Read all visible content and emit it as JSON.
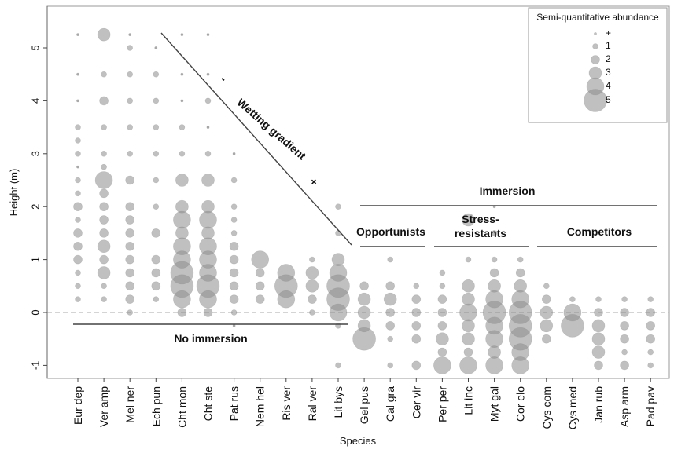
{
  "chart_data": {
    "type": "scatter",
    "subtype": "bubble",
    "xlabel": "Species",
    "ylabel": "Height (m)",
    "ylim": [
      -1.45,
      5.6
    ],
    "yticks": [
      "-1",
      "0",
      "1",
      "2",
      "3",
      "4",
      "5"
    ],
    "categories": [
      "Eur dep",
      "Ver amp",
      "Mel ner",
      "Ech pun",
      "Cht mon",
      "Cht ste",
      "Pat rus",
      "Nem hel",
      "Ris ver",
      "Ral ver",
      "Lit bys",
      "Gel pus",
      "Cal gra",
      "Cer vir",
      "Per per",
      "Lit inc",
      "Myt gal",
      "Cor elo",
      "Cys com",
      "Cys med",
      "Jan rub",
      "Asp arm",
      "Pad pav"
    ],
    "legend": {
      "title": "Semi-quantitative abundance",
      "position": "top-right",
      "levels": [
        "+",
        "1",
        "2",
        "3",
        "4",
        "5"
      ]
    },
    "annotations": {
      "wetting_gradient": "Wetting gradient",
      "minus": "-",
      "plus": "+",
      "no_immersion": "No immersion",
      "immersion": "Immersion",
      "opportunists": "Opportunists",
      "stress_resistants_1": "Stress-",
      "stress_resistants_2": "resistants",
      "competitors": "Competitors"
    },
    "colors": {
      "points": "#8c8c8c",
      "lines": "#444444",
      "zero_line": "#bbbbbb"
    },
    "points": [
      {
        "species": "Eur dep",
        "heights": [
          5.25,
          4.5,
          4.0,
          3.5,
          3.25,
          3.0,
          2.75,
          2.5,
          2.25,
          2.0,
          1.75,
          1.5,
          1.25,
          1.0,
          0.75,
          0.5,
          0.25
        ],
        "abundance": [
          0,
          0,
          0,
          1,
          1,
          1,
          0,
          1,
          1,
          2,
          1,
          2,
          2,
          2,
          1,
          1,
          1
        ]
      },
      {
        "species": "Ver amp",
        "heights": [
          5.25,
          4.5,
          4.0,
          3.5,
          3.0,
          2.75,
          2.5,
          2.25,
          2.0,
          1.75,
          1.5,
          1.25,
          1.0,
          0.75,
          0.5,
          0.25
        ],
        "abundance": [
          3,
          1,
          2,
          1,
          1,
          1,
          4,
          2,
          2,
          2,
          2,
          3,
          2,
          3,
          1,
          1
        ]
      },
      {
        "species": "Mel ner",
        "heights": [
          5.25,
          5.0,
          4.5,
          4.0,
          3.5,
          3.0,
          2.5,
          2.0,
          1.75,
          1.5,
          1.25,
          1.0,
          0.75,
          0.5,
          0.25,
          0.0
        ],
        "abundance": [
          0,
          1,
          1,
          1,
          1,
          1,
          2,
          2,
          2,
          2,
          2,
          2,
          2,
          2,
          2,
          1
        ]
      },
      {
        "species": "Ech pun",
        "heights": [
          5.0,
          4.5,
          4.0,
          3.5,
          3.0,
          2.5,
          2.0,
          1.5,
          1.0,
          0.75,
          0.5,
          0.25
        ],
        "abundance": [
          0,
          1,
          1,
          1,
          1,
          1,
          1,
          2,
          2,
          2,
          2,
          1
        ]
      },
      {
        "species": "Cht mon",
        "heights": [
          5.25,
          4.5,
          4.0,
          3.5,
          3.0,
          2.5,
          2.0,
          1.75,
          1.5,
          1.25,
          1.0,
          0.75,
          0.5,
          0.25,
          0.0
        ],
        "abundance": [
          0,
          0,
          0,
          1,
          1,
          3,
          3,
          4,
          3,
          4,
          4,
          5,
          5,
          4,
          2
        ]
      },
      {
        "species": "Cht ste",
        "heights": [
          5.25,
          4.5,
          4.0,
          3.5,
          3.0,
          2.5,
          2.0,
          1.75,
          1.5,
          1.25,
          1.0,
          0.75,
          0.5,
          0.25,
          0.0
        ],
        "abundance": [
          0,
          0,
          1,
          0,
          1,
          3,
          3,
          4,
          3,
          4,
          4,
          4,
          5,
          4,
          2
        ]
      },
      {
        "species": "Pat rus",
        "heights": [
          3.0,
          2.5,
          2.0,
          1.75,
          1.5,
          1.25,
          1.0,
          0.75,
          0.5,
          0.25,
          0.0,
          -0.25
        ],
        "abundance": [
          0,
          1,
          1,
          1,
          1,
          2,
          2,
          2,
          2,
          2,
          1,
          0
        ]
      },
      {
        "species": "Nem hel",
        "heights": [
          1.0,
          0.75,
          0.5,
          0.25
        ],
        "abundance": [
          4,
          2,
          2,
          2
        ]
      },
      {
        "species": "Ris ver",
        "heights": [
          0.75,
          0.5,
          0.25
        ],
        "abundance": [
          4,
          5,
          4
        ]
      },
      {
        "species": "Ral ver",
        "heights": [
          1.0,
          0.75,
          0.5,
          0.25,
          0.0
        ],
        "abundance": [
          1,
          3,
          3,
          2,
          1
        ]
      },
      {
        "species": "Lit bys",
        "heights": [
          2.0,
          1.5,
          1.0,
          0.75,
          0.5,
          0.25,
          0.0,
          -0.25,
          -1.0
        ],
        "abundance": [
          1,
          1,
          3,
          4,
          5,
          5,
          4,
          1,
          1
        ]
      },
      {
        "species": "Gel pus",
        "heights": [
          0.5,
          0.25,
          0.0,
          -0.25,
          -0.5
        ],
        "abundance": [
          2,
          3,
          3,
          3,
          5
        ]
      },
      {
        "species": "Cal gra",
        "heights": [
          1.0,
          0.5,
          0.25,
          0.0,
          -0.25,
          -0.5,
          -1.0
        ],
        "abundance": [
          1,
          2,
          3,
          2,
          2,
          1,
          1
        ]
      },
      {
        "species": "Cer vir",
        "heights": [
          0.5,
          0.25,
          0.0,
          -0.25,
          -0.5,
          -1.0
        ],
        "abundance": [
          1,
          2,
          2,
          2,
          2,
          2
        ]
      },
      {
        "species": "Per per",
        "heights": [
          0.75,
          0.5,
          0.25,
          0.0,
          -0.25,
          -0.5,
          -0.75,
          -1.0
        ],
        "abundance": [
          1,
          1,
          2,
          2,
          2,
          3,
          2,
          4
        ]
      },
      {
        "species": "Lit inc",
        "heights": [
          1.75,
          1.0,
          0.5,
          0.25,
          0.0,
          -0.25,
          -0.5,
          -0.75,
          -1.0
        ],
        "abundance": [
          3,
          1,
          3,
          3,
          4,
          3,
          3,
          2,
          4
        ]
      },
      {
        "species": "Myt gal",
        "heights": [
          2.0,
          1.5,
          1.0,
          0.75,
          0.5,
          0.25,
          0.0,
          -0.25,
          -0.5,
          -0.75,
          -1.0
        ],
        "abundance": [
          0,
          1,
          1,
          2,
          3,
          4,
          5,
          4,
          4,
          3,
          4
        ]
      },
      {
        "species": "Cor elo",
        "heights": [
          1.0,
          0.75,
          0.5,
          0.25,
          0.0,
          -0.25,
          -0.5,
          -0.75,
          -1.0
        ],
        "abundance": [
          1,
          2,
          3,
          4,
          5,
          5,
          5,
          4,
          4
        ]
      },
      {
        "species": "Cys com",
        "heights": [
          0.5,
          0.25,
          0.0,
          -0.25,
          -0.5
        ],
        "abundance": [
          1,
          2,
          3,
          3,
          2
        ]
      },
      {
        "species": "Cys med",
        "heights": [
          0.25,
          0.0,
          -0.25
        ],
        "abundance": [
          1,
          4,
          5
        ]
      },
      {
        "species": "Jan rub",
        "heights": [
          0.25,
          0.0,
          -0.25,
          -0.5,
          -0.75,
          -1.0
        ],
        "abundance": [
          1,
          2,
          3,
          3,
          3,
          2
        ]
      },
      {
        "species": "Asp arm",
        "heights": [
          0.25,
          0.0,
          -0.25,
          -0.5,
          -0.75,
          -1.0
        ],
        "abundance": [
          1,
          2,
          2,
          2,
          1,
          2
        ]
      },
      {
        "species": "Pad pav",
        "heights": [
          0.25,
          0.0,
          -0.25,
          -0.5,
          -0.75,
          -1.0
        ],
        "abundance": [
          1,
          2,
          2,
          2,
          1,
          1
        ]
      }
    ]
  }
}
